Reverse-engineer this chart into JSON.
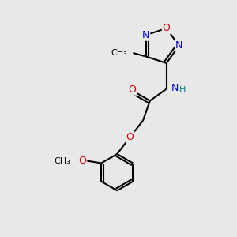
{
  "bg_color": "#e8e8e8",
  "atom_colors": {
    "C": "#000000",
    "N": "#0000cc",
    "O": "#cc0000",
    "H": "#008080"
  },
  "bond_color": "#000000",
  "bond_width": 1.5,
  "figsize": [
    3.0,
    3.0
  ],
  "dpi": 100,
  "xlim": [
    0,
    10
  ],
  "ylim": [
    0,
    10
  ]
}
